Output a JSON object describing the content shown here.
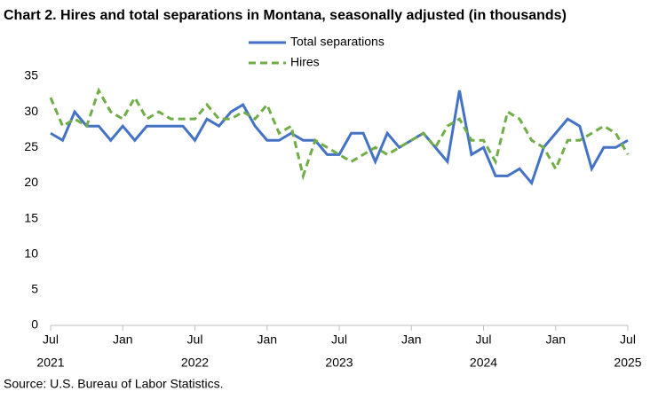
{
  "chart_data": {
    "type": "line",
    "title": "Chart 2. Hires and total separations in Montana, seasonally adjusted (in thousands)",
    "source": "Source: U.S. Bureau of Labor Statistics.",
    "categories": [
      [
        "Jul",
        "2021"
      ],
      null,
      null,
      null,
      null,
      null,
      [
        "Jan"
      ],
      null,
      null,
      null,
      null,
      null,
      [
        "Jul",
        "2022"
      ],
      null,
      null,
      null,
      null,
      null,
      [
        "Jan"
      ],
      null,
      null,
      null,
      null,
      null,
      [
        "Jul",
        "2023"
      ],
      null,
      null,
      null,
      null,
      null,
      [
        "Jan"
      ],
      null,
      null,
      null,
      null,
      null,
      [
        "Jul",
        "2024"
      ],
      null,
      null,
      null,
      null,
      null,
      [
        "Jan"
      ],
      null,
      null,
      null,
      null,
      null,
      [
        "Jul",
        "2025"
      ]
    ],
    "series": [
      {
        "name": "Total separations",
        "color": "#4472c4",
        "dash": false,
        "values": [
          27,
          26,
          30,
          28,
          28,
          26,
          28,
          26,
          28,
          28,
          28,
          28,
          26,
          29,
          28,
          30,
          31,
          28,
          26,
          26,
          27,
          26,
          26,
          24,
          24,
          27,
          27,
          23,
          27,
          25,
          26,
          27,
          25,
          23,
          33,
          24,
          25,
          21,
          21,
          22,
          20,
          25,
          27,
          29,
          28,
          22,
          25,
          25,
          26
        ]
      },
      {
        "name": "Hires",
        "color": "#70ad47",
        "dash": true,
        "values": [
          32,
          28,
          29,
          28,
          33,
          30,
          29,
          32,
          29,
          30,
          29,
          29,
          29,
          31,
          29,
          29,
          30,
          29,
          31,
          27,
          28,
          21,
          26,
          25,
          24,
          23,
          24,
          25,
          24,
          25,
          26,
          27,
          25,
          28,
          29,
          26,
          26,
          23,
          30,
          29,
          26,
          25,
          22,
          26,
          26,
          27,
          28,
          27,
          24
        ]
      }
    ],
    "ylim": [
      0,
      35
    ],
    "yticks": [
      0,
      5,
      10,
      15,
      20,
      25,
      30,
      35
    ],
    "grid": false
  }
}
